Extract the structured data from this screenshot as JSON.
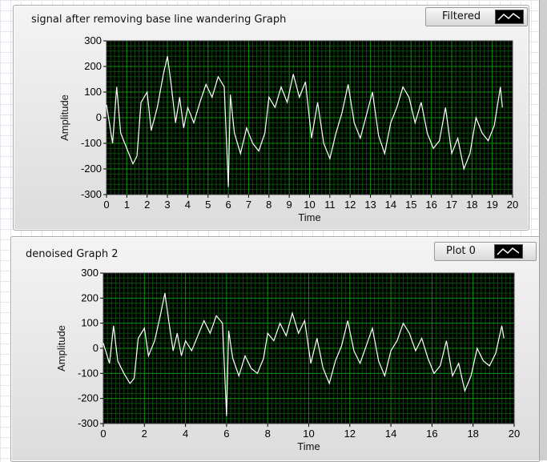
{
  "graphs": [
    {
      "title": "signal after removing base line wandering Graph",
      "legend": "Filtered",
      "xlabel": "Time",
      "ylabel": "Amplitude",
      "x_ticks": [
        "0",
        "1",
        "2",
        "3",
        "4",
        "5",
        "6",
        "7",
        "8",
        "9",
        "10",
        "11",
        "12",
        "13",
        "14",
        "15",
        "16",
        "17",
        "18",
        "19",
        "20"
      ],
      "y_ticks": [
        "300",
        "200",
        "100",
        "0",
        "-100",
        "-200",
        "-300"
      ]
    },
    {
      "title": "denoised Graph 2",
      "legend": "Plot 0",
      "xlabel": "Time",
      "ylabel": "Amplitude",
      "x_ticks": [
        "0",
        "2",
        "4",
        "6",
        "8",
        "10",
        "12",
        "14",
        "16",
        "18",
        "20"
      ],
      "y_ticks": [
        "300",
        "200",
        "100",
        "0",
        "-100",
        "-200",
        "-300"
      ]
    }
  ],
  "colors": {
    "plot_background": "#000000",
    "grid_major": "#0b8a0b",
    "grid_minor": "#0a4a0a",
    "trace": "#ffffff"
  },
  "chart_data": [
    {
      "type": "line",
      "title": "signal after removing base line wandering Graph",
      "xlabel": "Time",
      "ylabel": "Amplitude",
      "xlim": [
        0,
        20
      ],
      "ylim": [
        -300,
        300
      ],
      "grid": true,
      "legend": "top-right",
      "series": [
        {
          "name": "Filtered",
          "x": [
            0,
            0.3,
            0.5,
            0.7,
            1.0,
            1.3,
            1.5,
            1.7,
            2.0,
            2.2,
            2.5,
            2.8,
            3.0,
            3.2,
            3.4,
            3.6,
            3.8,
            4.0,
            4.3,
            4.6,
            4.9,
            5.2,
            5.5,
            5.8,
            6.0,
            6.1,
            6.3,
            6.6,
            6.9,
            7.2,
            7.5,
            7.8,
            8.0,
            8.3,
            8.6,
            8.9,
            9.2,
            9.5,
            9.8,
            10.1,
            10.4,
            10.7,
            11.0,
            11.3,
            11.6,
            11.9,
            12.2,
            12.5,
            12.8,
            13.1,
            13.4,
            13.7,
            14.0,
            14.3,
            14.6,
            14.9,
            15.2,
            15.5,
            15.8,
            16.1,
            16.4,
            16.7,
            17.0,
            17.3,
            17.6,
            17.9,
            18.2,
            18.5,
            18.8,
            19.1,
            19.4,
            19.5
          ],
          "y": [
            50,
            -100,
            120,
            -60,
            -120,
            -180,
            -150,
            60,
            100,
            -50,
            40,
            170,
            240,
            120,
            -20,
            80,
            -40,
            40,
            -20,
            60,
            130,
            80,
            160,
            120,
            -270,
            90,
            -60,
            -140,
            -40,
            -100,
            -130,
            -60,
            80,
            40,
            120,
            60,
            170,
            80,
            140,
            -80,
            60,
            -100,
            -160,
            -60,
            20,
            130,
            -20,
            -80,
            10,
            100,
            -70,
            -140,
            -20,
            40,
            120,
            80,
            -20,
            60,
            -60,
            -120,
            -90,
            40,
            -140,
            -80,
            -200,
            -140,
            0,
            -60,
            -90,
            -30,
            120,
            40
          ]
        }
      ]
    },
    {
      "type": "line",
      "title": "denoised Graph 2",
      "xlabel": "Time",
      "ylabel": "Amplitude",
      "xlim": [
        0,
        20
      ],
      "ylim": [
        -300,
        300
      ],
      "grid": true,
      "legend": "top-right",
      "series": [
        {
          "name": "Plot 0",
          "x": [
            0,
            0.3,
            0.5,
            0.7,
            1.0,
            1.3,
            1.5,
            1.7,
            2.0,
            2.2,
            2.5,
            2.8,
            3.0,
            3.2,
            3.4,
            3.6,
            3.8,
            4.0,
            4.3,
            4.6,
            4.9,
            5.2,
            5.5,
            5.8,
            6.0,
            6.1,
            6.3,
            6.6,
            6.9,
            7.2,
            7.5,
            7.8,
            8.0,
            8.3,
            8.6,
            8.9,
            9.2,
            9.5,
            9.8,
            10.1,
            10.4,
            10.7,
            11.0,
            11.3,
            11.6,
            11.9,
            12.2,
            12.5,
            12.8,
            13.1,
            13.4,
            13.7,
            14.0,
            14.3,
            14.6,
            14.9,
            15.2,
            15.5,
            15.8,
            16.1,
            16.4,
            16.7,
            17.0,
            17.3,
            17.6,
            17.9,
            18.2,
            18.5,
            18.8,
            19.1,
            19.4,
            19.5
          ],
          "y": [
            20,
            -60,
            90,
            -50,
            -100,
            -140,
            -120,
            40,
            80,
            -30,
            30,
            140,
            220,
            100,
            -10,
            60,
            -30,
            30,
            -10,
            50,
            110,
            60,
            130,
            100,
            -270,
            70,
            -40,
            -110,
            -30,
            -80,
            -100,
            -40,
            60,
            30,
            100,
            50,
            140,
            60,
            110,
            -60,
            40,
            -80,
            -140,
            -50,
            10,
            110,
            -10,
            -60,
            10,
            80,
            -50,
            -110,
            -10,
            30,
            100,
            60,
            -10,
            40,
            -40,
            -100,
            -70,
            30,
            -110,
            -60,
            -170,
            -110,
            0,
            -50,
            -70,
            -20,
            90,
            40
          ]
        }
      ]
    }
  ]
}
